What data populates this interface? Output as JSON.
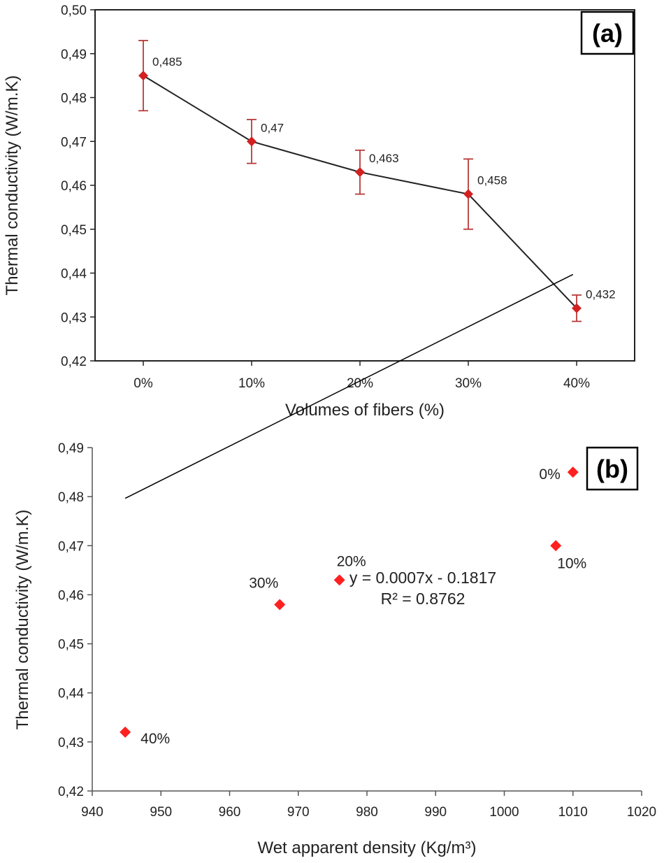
{
  "chart_data": [
    {
      "type": "line",
      "panel_label": "(a)",
      "xlabel": "Volumes of fibers (%)",
      "ylabel": "Thermal conductivity (W/m.K)",
      "categories": [
        "0%",
        "10%",
        "20%",
        "30%",
        "40%"
      ],
      "values": [
        0.485,
        0.47,
        0.463,
        0.458,
        0.432
      ],
      "value_labels": [
        "0,485",
        "0,47",
        "0,463",
        "0,458",
        "0,432"
      ],
      "error_low": [
        0.477,
        0.465,
        0.458,
        0.45,
        0.429
      ],
      "error_high": [
        0.493,
        0.475,
        0.468,
        0.466,
        0.435
      ],
      "ylim": [
        0.42,
        0.5
      ],
      "yticks": [
        0.42,
        0.43,
        0.44,
        0.45,
        0.46,
        0.47,
        0.48,
        0.49,
        0.5
      ],
      "ytick_labels": [
        "0,42",
        "0,43",
        "0,44",
        "0,45",
        "0,46",
        "0,47",
        "0,48",
        "0,49",
        "0,50"
      ],
      "colors": {
        "marker": "#d42020",
        "line": "#222222",
        "error": "#b83a3a"
      }
    },
    {
      "type": "scatter",
      "panel_label": "(b)",
      "xlabel": "Wet apparent density (Kg/m³)",
      "ylabel": "Thermal conductivity (W/m.K)",
      "points": [
        {
          "x": 1010,
          "y": 0.485,
          "label": "0%"
        },
        {
          "x": 1007.5,
          "y": 0.47,
          "label": "10%"
        },
        {
          "x": 976,
          "y": 0.463,
          "label": "20%"
        },
        {
          "x": 967.3,
          "y": 0.458,
          "label": "30%"
        },
        {
          "x": 944.8,
          "y": 0.432,
          "label": "40%"
        }
      ],
      "trendline": {
        "slope": 0.0007,
        "intercept": -0.1817,
        "x_start": 944.8,
        "x_end": 1010
      },
      "equation": "y = 0.0007x - 0.1817",
      "r_squared": "R² = 0.8762",
      "xlim": [
        940,
        1020
      ],
      "ylim": [
        0.42,
        0.49
      ],
      "xticks": [
        940,
        950,
        960,
        970,
        980,
        990,
        1000,
        1010,
        1020
      ],
      "xtick_labels": [
        "940",
        "950",
        "960",
        "970",
        "980",
        "990",
        "1000",
        "1010",
        "1020"
      ],
      "yticks": [
        0.42,
        0.43,
        0.44,
        0.45,
        0.46,
        0.47,
        0.48,
        0.49
      ],
      "ytick_labels": [
        "0,42",
        "0,43",
        "0,44",
        "0,45",
        "0,46",
        "0,47",
        "0,48",
        "0,49"
      ],
      "colors": {
        "marker": "#ff2020",
        "trendline": "#000000"
      }
    }
  ]
}
